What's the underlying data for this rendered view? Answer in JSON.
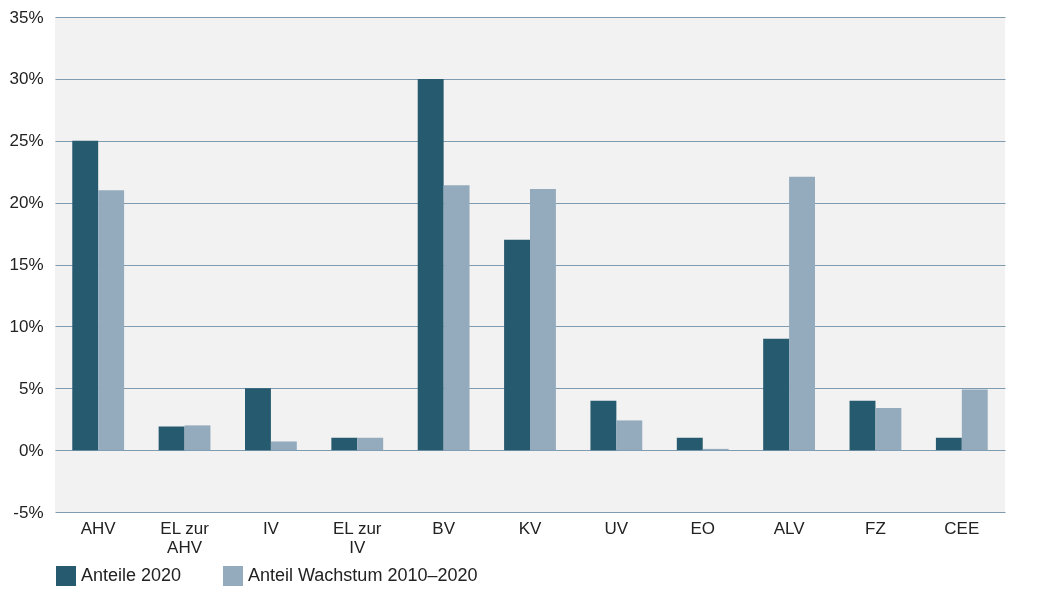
{
  "chart_data": {
    "type": "bar",
    "categories": [
      "AHV",
      "EL zur AHV",
      "IV",
      "EL zur IV",
      "BV",
      "KV",
      "UV",
      "EO",
      "ALV",
      "FZ",
      "CEE"
    ],
    "series": [
      {
        "name": "Anteile 2020",
        "color": "#265a6e",
        "values": [
          25.0,
          1.9,
          5.0,
          1.0,
          30.0,
          17.0,
          4.0,
          1.0,
          9.0,
          4.0,
          1.0
        ]
      },
      {
        "name": "Anteil Wachstum 2010–2020",
        "color": "#94abbd",
        "values": [
          21.0,
          2.0,
          0.7,
          1.0,
          21.4,
          21.1,
          2.4,
          0.1,
          22.1,
          3.4,
          4.9
        ]
      }
    ],
    "ylim": [
      -5,
      35
    ],
    "yticks": [
      {
        "value": -5,
        "label": "-5%"
      },
      {
        "value": 0,
        "label": "0%"
      },
      {
        "value": 5,
        "label": "5%"
      },
      {
        "value": 10,
        "label": "10%"
      },
      {
        "value": 15,
        "label": "15%"
      },
      {
        "value": 20,
        "label": "20%"
      },
      {
        "value": 25,
        "label": "25%"
      },
      {
        "value": 30,
        "label": "30%"
      },
      {
        "value": 35,
        "label": "35%"
      }
    ],
    "grid": "y",
    "legend": "bottom left"
  }
}
